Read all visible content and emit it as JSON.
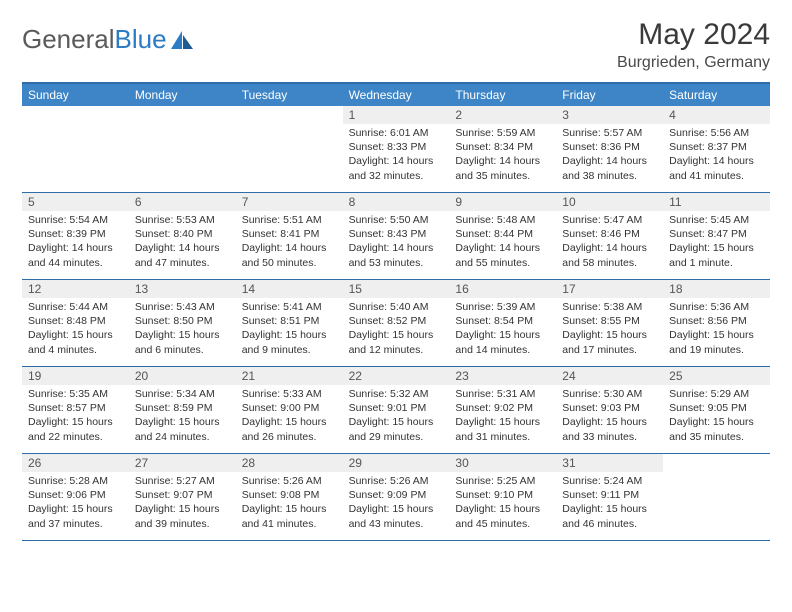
{
  "logo": {
    "text_gray": "General",
    "text_blue": "Blue"
  },
  "title": "May 2024",
  "location": "Burgrieden, Germany",
  "colors": {
    "header_bg": "#3d85c6",
    "header_border": "#2f6da8",
    "daynum_bg": "#efefef",
    "text_dark": "#3a3a3a",
    "logo_gray": "#5a5a5a",
    "logo_blue": "#2b7cc4"
  },
  "day_names": [
    "Sunday",
    "Monday",
    "Tuesday",
    "Wednesday",
    "Thursday",
    "Friday",
    "Saturday"
  ],
  "weeks": [
    [
      {
        "n": "",
        "sr": "",
        "ss": "",
        "dl": ""
      },
      {
        "n": "",
        "sr": "",
        "ss": "",
        "dl": ""
      },
      {
        "n": "",
        "sr": "",
        "ss": "",
        "dl": ""
      },
      {
        "n": "1",
        "sr": "Sunrise: 6:01 AM",
        "ss": "Sunset: 8:33 PM",
        "dl": "Daylight: 14 hours and 32 minutes."
      },
      {
        "n": "2",
        "sr": "Sunrise: 5:59 AM",
        "ss": "Sunset: 8:34 PM",
        "dl": "Daylight: 14 hours and 35 minutes."
      },
      {
        "n": "3",
        "sr": "Sunrise: 5:57 AM",
        "ss": "Sunset: 8:36 PM",
        "dl": "Daylight: 14 hours and 38 minutes."
      },
      {
        "n": "4",
        "sr": "Sunrise: 5:56 AM",
        "ss": "Sunset: 8:37 PM",
        "dl": "Daylight: 14 hours and 41 minutes."
      }
    ],
    [
      {
        "n": "5",
        "sr": "Sunrise: 5:54 AM",
        "ss": "Sunset: 8:39 PM",
        "dl": "Daylight: 14 hours and 44 minutes."
      },
      {
        "n": "6",
        "sr": "Sunrise: 5:53 AM",
        "ss": "Sunset: 8:40 PM",
        "dl": "Daylight: 14 hours and 47 minutes."
      },
      {
        "n": "7",
        "sr": "Sunrise: 5:51 AM",
        "ss": "Sunset: 8:41 PM",
        "dl": "Daylight: 14 hours and 50 minutes."
      },
      {
        "n": "8",
        "sr": "Sunrise: 5:50 AM",
        "ss": "Sunset: 8:43 PM",
        "dl": "Daylight: 14 hours and 53 minutes."
      },
      {
        "n": "9",
        "sr": "Sunrise: 5:48 AM",
        "ss": "Sunset: 8:44 PM",
        "dl": "Daylight: 14 hours and 55 minutes."
      },
      {
        "n": "10",
        "sr": "Sunrise: 5:47 AM",
        "ss": "Sunset: 8:46 PM",
        "dl": "Daylight: 14 hours and 58 minutes."
      },
      {
        "n": "11",
        "sr": "Sunrise: 5:45 AM",
        "ss": "Sunset: 8:47 PM",
        "dl": "Daylight: 15 hours and 1 minute."
      }
    ],
    [
      {
        "n": "12",
        "sr": "Sunrise: 5:44 AM",
        "ss": "Sunset: 8:48 PM",
        "dl": "Daylight: 15 hours and 4 minutes."
      },
      {
        "n": "13",
        "sr": "Sunrise: 5:43 AM",
        "ss": "Sunset: 8:50 PM",
        "dl": "Daylight: 15 hours and 6 minutes."
      },
      {
        "n": "14",
        "sr": "Sunrise: 5:41 AM",
        "ss": "Sunset: 8:51 PM",
        "dl": "Daylight: 15 hours and 9 minutes."
      },
      {
        "n": "15",
        "sr": "Sunrise: 5:40 AM",
        "ss": "Sunset: 8:52 PM",
        "dl": "Daylight: 15 hours and 12 minutes."
      },
      {
        "n": "16",
        "sr": "Sunrise: 5:39 AM",
        "ss": "Sunset: 8:54 PM",
        "dl": "Daylight: 15 hours and 14 minutes."
      },
      {
        "n": "17",
        "sr": "Sunrise: 5:38 AM",
        "ss": "Sunset: 8:55 PM",
        "dl": "Daylight: 15 hours and 17 minutes."
      },
      {
        "n": "18",
        "sr": "Sunrise: 5:36 AM",
        "ss": "Sunset: 8:56 PM",
        "dl": "Daylight: 15 hours and 19 minutes."
      }
    ],
    [
      {
        "n": "19",
        "sr": "Sunrise: 5:35 AM",
        "ss": "Sunset: 8:57 PM",
        "dl": "Daylight: 15 hours and 22 minutes."
      },
      {
        "n": "20",
        "sr": "Sunrise: 5:34 AM",
        "ss": "Sunset: 8:59 PM",
        "dl": "Daylight: 15 hours and 24 minutes."
      },
      {
        "n": "21",
        "sr": "Sunrise: 5:33 AM",
        "ss": "Sunset: 9:00 PM",
        "dl": "Daylight: 15 hours and 26 minutes."
      },
      {
        "n": "22",
        "sr": "Sunrise: 5:32 AM",
        "ss": "Sunset: 9:01 PM",
        "dl": "Daylight: 15 hours and 29 minutes."
      },
      {
        "n": "23",
        "sr": "Sunrise: 5:31 AM",
        "ss": "Sunset: 9:02 PM",
        "dl": "Daylight: 15 hours and 31 minutes."
      },
      {
        "n": "24",
        "sr": "Sunrise: 5:30 AM",
        "ss": "Sunset: 9:03 PM",
        "dl": "Daylight: 15 hours and 33 minutes."
      },
      {
        "n": "25",
        "sr": "Sunrise: 5:29 AM",
        "ss": "Sunset: 9:05 PM",
        "dl": "Daylight: 15 hours and 35 minutes."
      }
    ],
    [
      {
        "n": "26",
        "sr": "Sunrise: 5:28 AM",
        "ss": "Sunset: 9:06 PM",
        "dl": "Daylight: 15 hours and 37 minutes."
      },
      {
        "n": "27",
        "sr": "Sunrise: 5:27 AM",
        "ss": "Sunset: 9:07 PM",
        "dl": "Daylight: 15 hours and 39 minutes."
      },
      {
        "n": "28",
        "sr": "Sunrise: 5:26 AM",
        "ss": "Sunset: 9:08 PM",
        "dl": "Daylight: 15 hours and 41 minutes."
      },
      {
        "n": "29",
        "sr": "Sunrise: 5:26 AM",
        "ss": "Sunset: 9:09 PM",
        "dl": "Daylight: 15 hours and 43 minutes."
      },
      {
        "n": "30",
        "sr": "Sunrise: 5:25 AM",
        "ss": "Sunset: 9:10 PM",
        "dl": "Daylight: 15 hours and 45 minutes."
      },
      {
        "n": "31",
        "sr": "Sunrise: 5:24 AM",
        "ss": "Sunset: 9:11 PM",
        "dl": "Daylight: 15 hours and 46 minutes."
      },
      {
        "n": "",
        "sr": "",
        "ss": "",
        "dl": ""
      }
    ]
  ]
}
